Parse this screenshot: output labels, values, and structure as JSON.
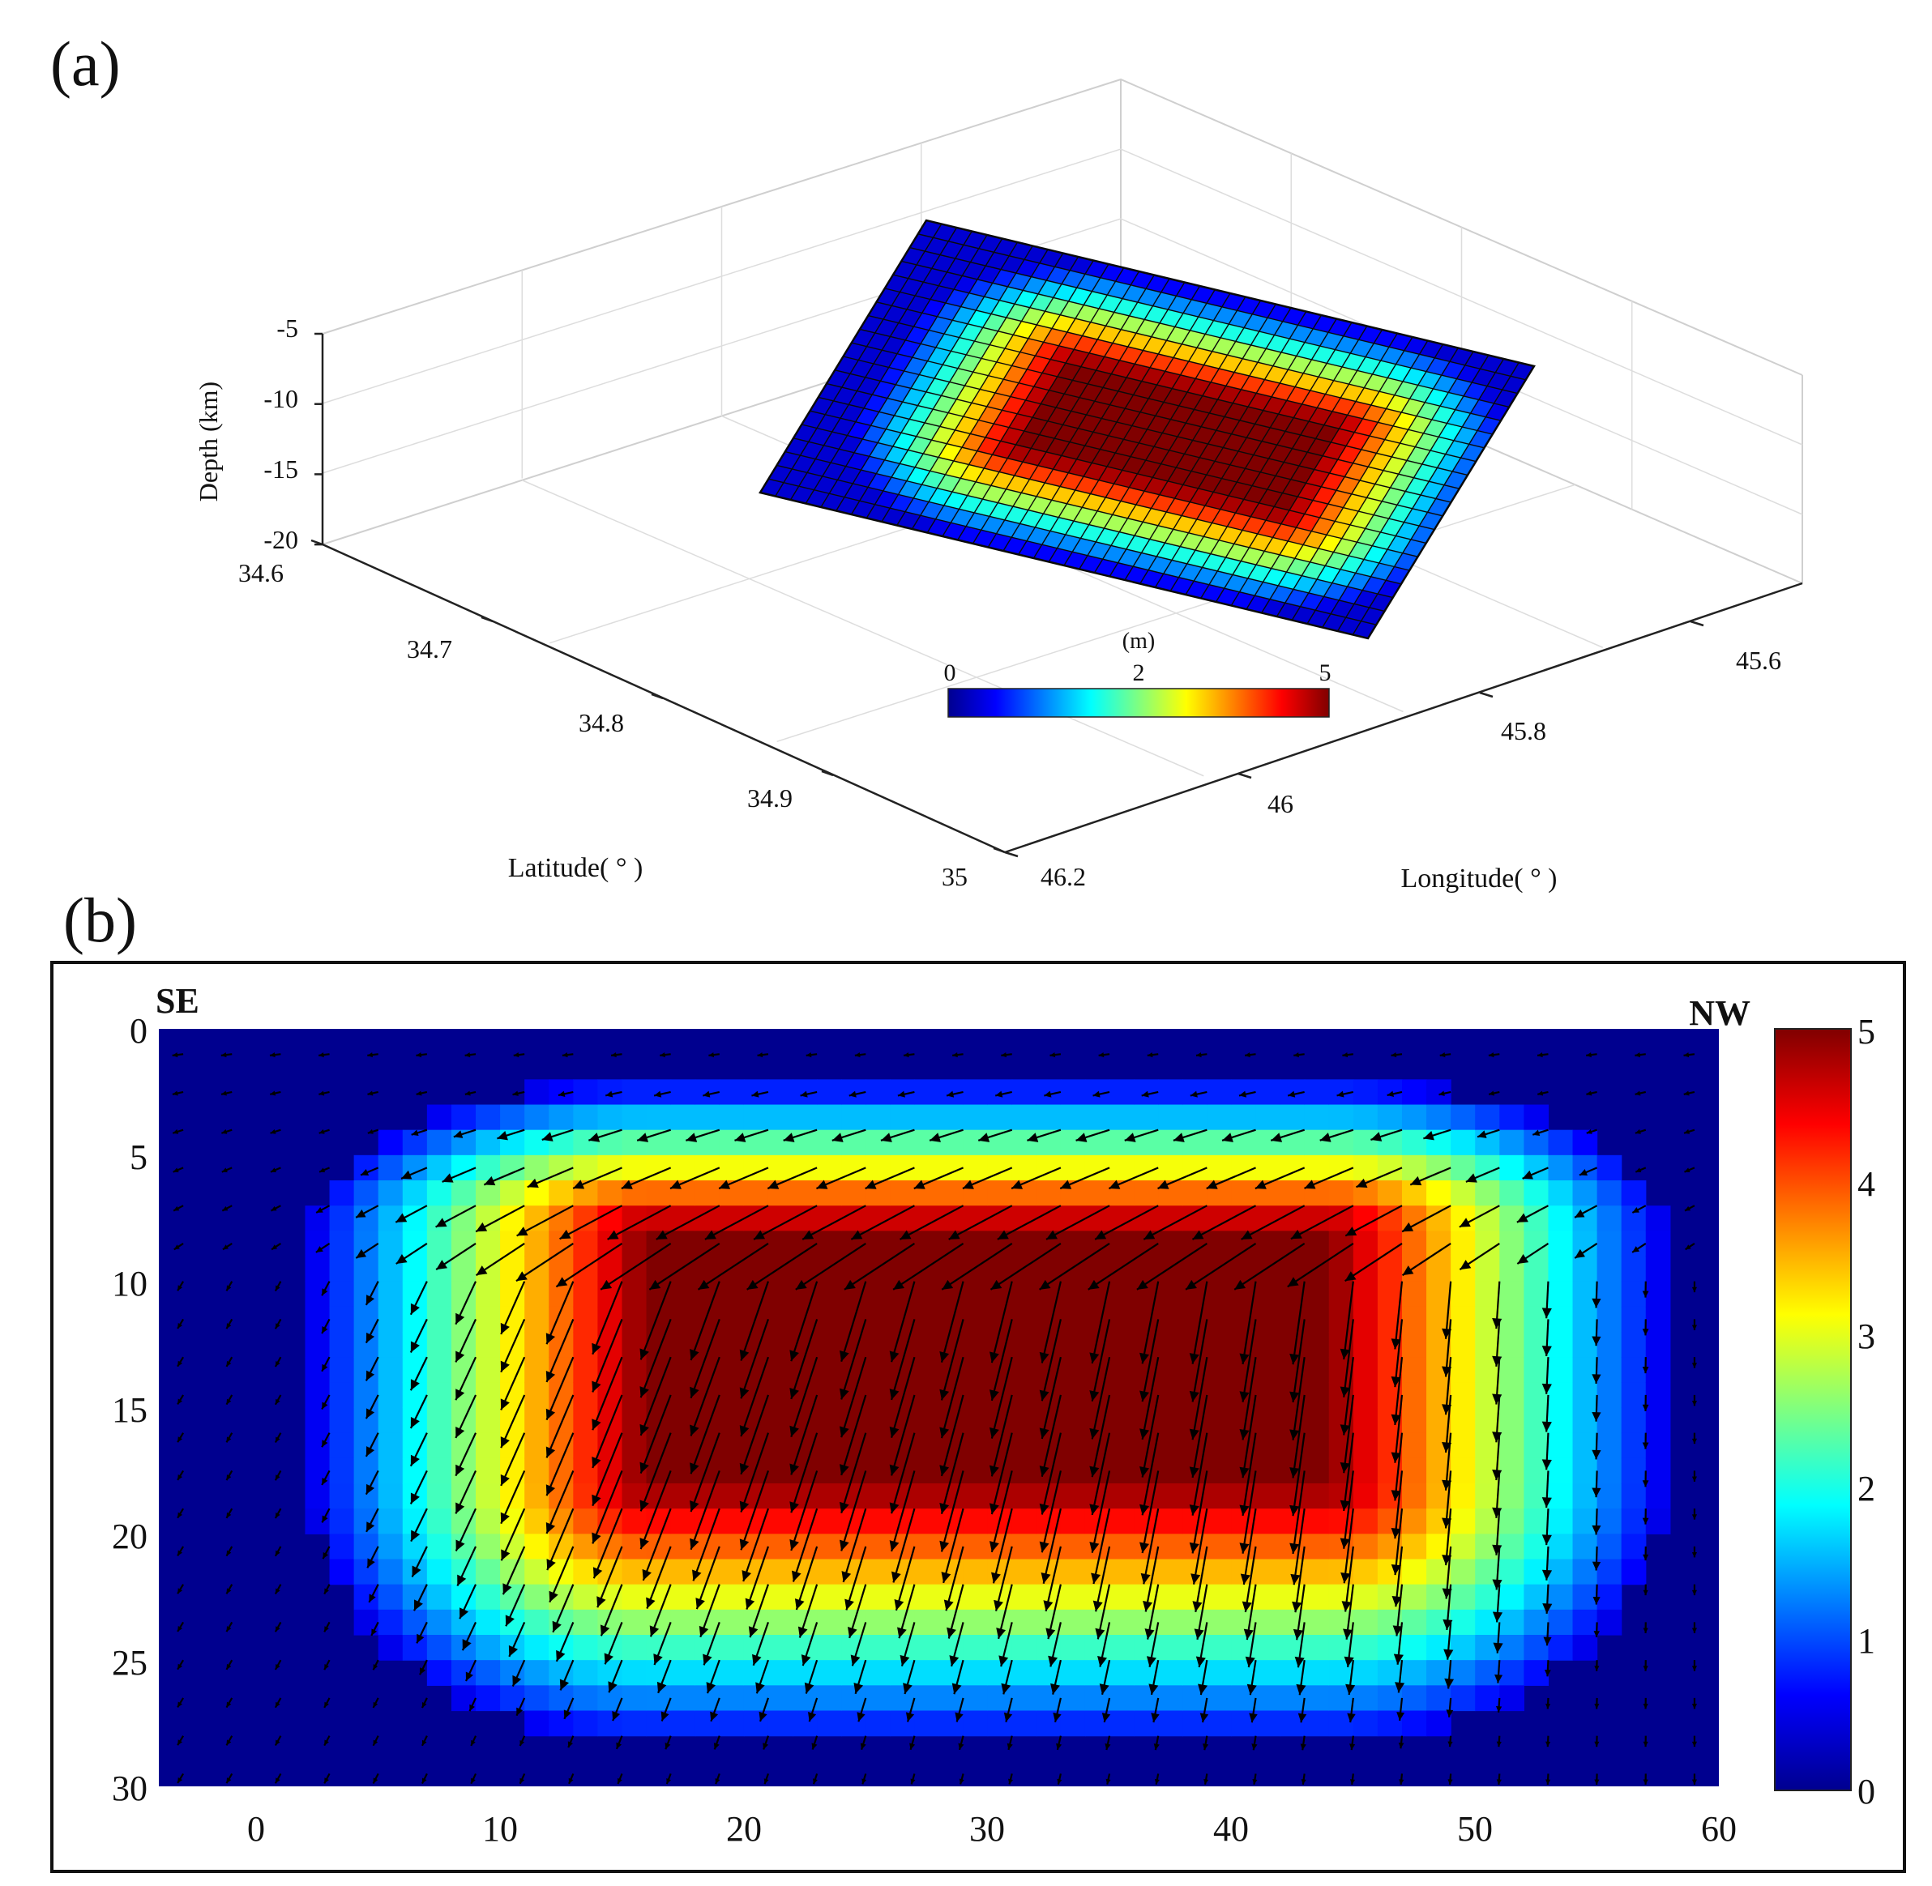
{
  "panels": {
    "a_label": "(a)",
    "b_label": "(b)"
  },
  "colormap": "jet",
  "chart_data": [
    {
      "type": "surface",
      "panel": "(a)",
      "zlabel": "Depth (km)",
      "xlabel": "Latitude( ° )",
      "ylabel": "Longitude( ° )",
      "z_ticks": [
        "-5",
        "-10",
        "-15",
        "-20"
      ],
      "lat_ticks": [
        "34.6",
        "34.7",
        "34.8",
        "34.9",
        "35"
      ],
      "lon_ticks": [
        "45.6",
        "45.8",
        "46",
        "46.2"
      ],
      "zlim": [
        -20,
        -5
      ],
      "grid": true,
      "fault_plane_grid": {
        "along_strike_cells": 40,
        "down_dip_cells": 20
      },
      "slip_max_m": 5,
      "colorbar": {
        "unit": "(m)",
        "ticks": [
          "0",
          "2",
          "5"
        ],
        "range": [
          0,
          5
        ],
        "placement": "inside-lower"
      }
    },
    {
      "type": "heatmap",
      "panel": "(b)",
      "corner_labels": [
        "SE",
        "NW"
      ],
      "x_ticks": [
        "0",
        "10",
        "20",
        "30",
        "40",
        "50",
        "60"
      ],
      "y_ticks": [
        "0",
        "5",
        "10",
        "15",
        "20",
        "25",
        "30"
      ],
      "xlim": [
        -4,
        60
      ],
      "ylim": [
        0,
        30
      ],
      "y_inverted": true,
      "slip_plateau_m": 5,
      "slip_core_x": [
        16,
        44
      ],
      "slip_core_y": [
        8,
        18
      ],
      "overlay": "slip direction vectors (quiver)",
      "colorbar": {
        "ticks": [
          "0",
          "1",
          "2",
          "3",
          "4",
          "5"
        ],
        "range": [
          0,
          5
        ],
        "placement": "right"
      }
    }
  ]
}
